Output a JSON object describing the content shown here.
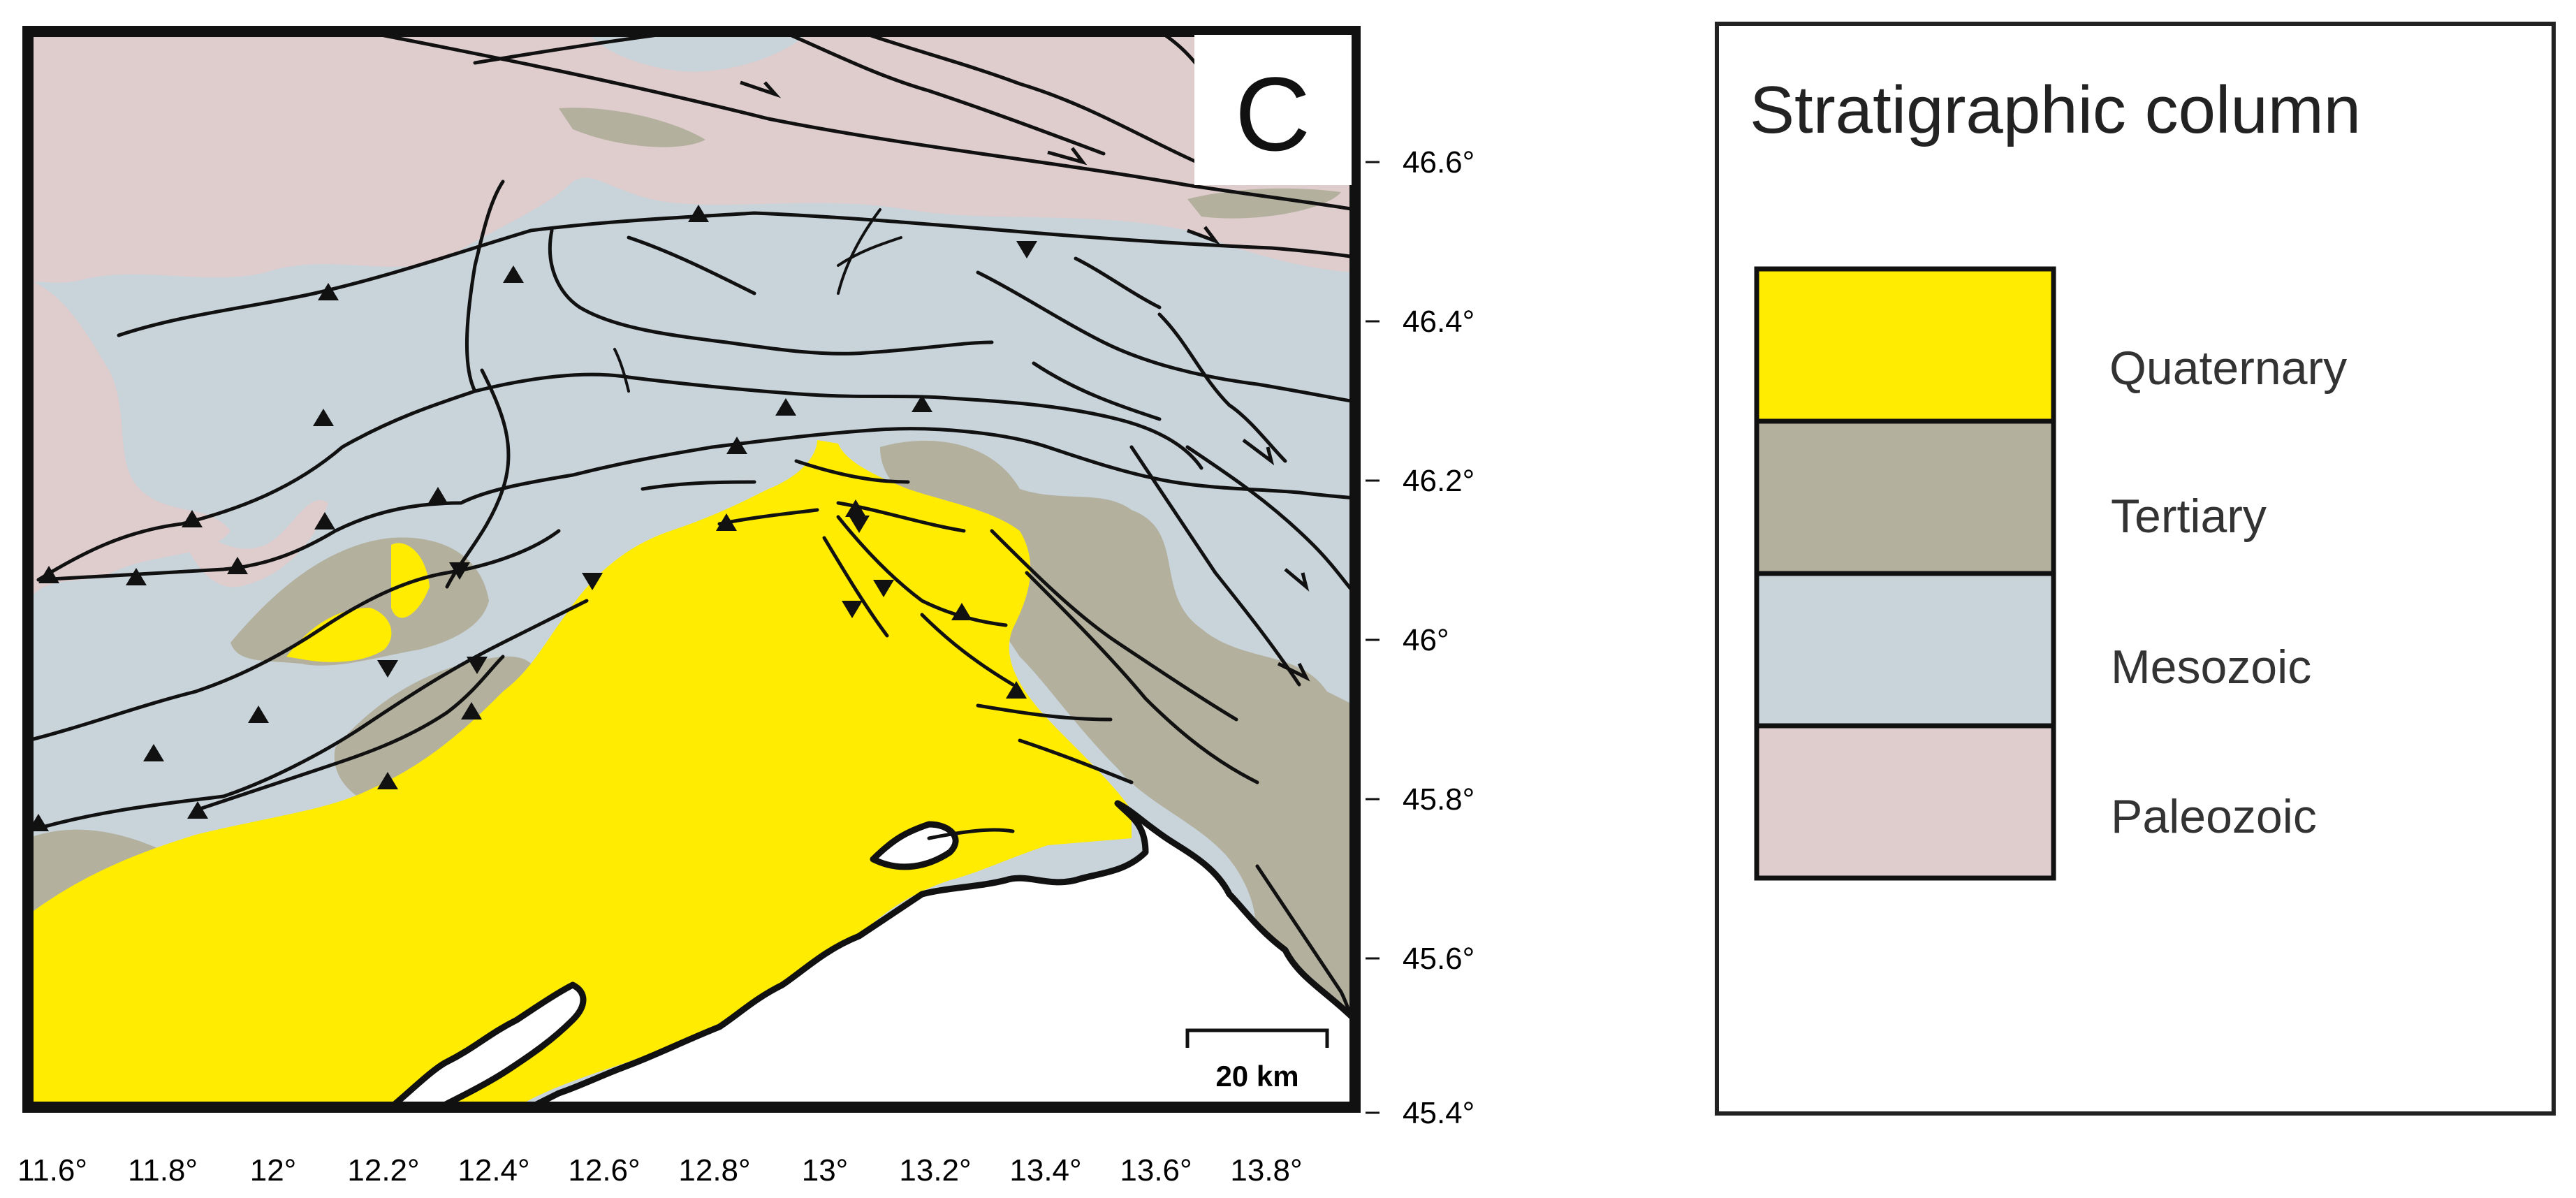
{
  "map": {
    "panel_letter": "C",
    "lon_ticks": [
      "11.6°",
      "11.8°",
      "12°",
      "12.2°",
      "12.4°",
      "12.6°",
      "12.8°",
      "13°",
      "13.2°",
      "13.4°",
      "13.6°",
      "13.8°"
    ],
    "lat_ticks": [
      "46.6°",
      "46.4°",
      "46.2°",
      "46°",
      "45.8°",
      "45.6°",
      "45.4°"
    ],
    "scale_bar_label": "20 km",
    "colors": {
      "quaternary": "#ffec00",
      "tertiary": "#b3b09e",
      "mesozoic": "#c8d3da",
      "paleozoic": "#dfcccd",
      "sea": "#ffffff"
    }
  },
  "legend": {
    "title": "Stratigraphic column",
    "units": [
      {
        "label": "Quaternary",
        "color": "#ffec00"
      },
      {
        "label": "Tertiary",
        "color": "#b3b09e"
      },
      {
        "label": "Mesozoic",
        "color": "#c8d3da"
      },
      {
        "label": "Paleozoic",
        "color": "#dfcccd"
      }
    ]
  }
}
